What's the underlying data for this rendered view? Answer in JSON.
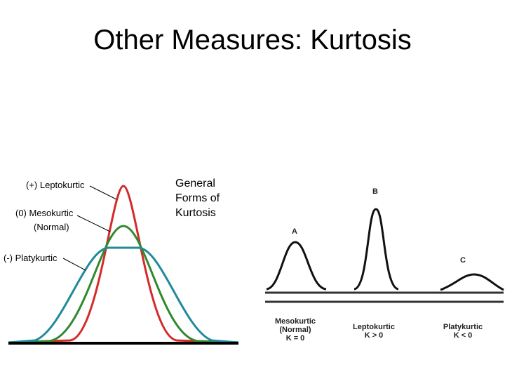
{
  "title": "Other Measures: Kurtosis",
  "left_figure": {
    "labels": [
      "(+) Leptokurtic",
      "(0) Mesokurtic",
      "(Normal)",
      "(-) Platykurtic"
    ],
    "caption": [
      "General",
      "Forms of",
      "Kurtosis"
    ]
  },
  "right_figure": {
    "panels": [
      {
        "letter": "A",
        "lines": [
          "Mesokurtic",
          "(Normal)",
          "K = 0"
        ]
      },
      {
        "letter": "B",
        "lines": [
          "Leptokurtic",
          "K > 0"
        ]
      },
      {
        "letter": "C",
        "lines": [
          "Platykurtic",
          "K < 0"
        ]
      }
    ]
  }
}
